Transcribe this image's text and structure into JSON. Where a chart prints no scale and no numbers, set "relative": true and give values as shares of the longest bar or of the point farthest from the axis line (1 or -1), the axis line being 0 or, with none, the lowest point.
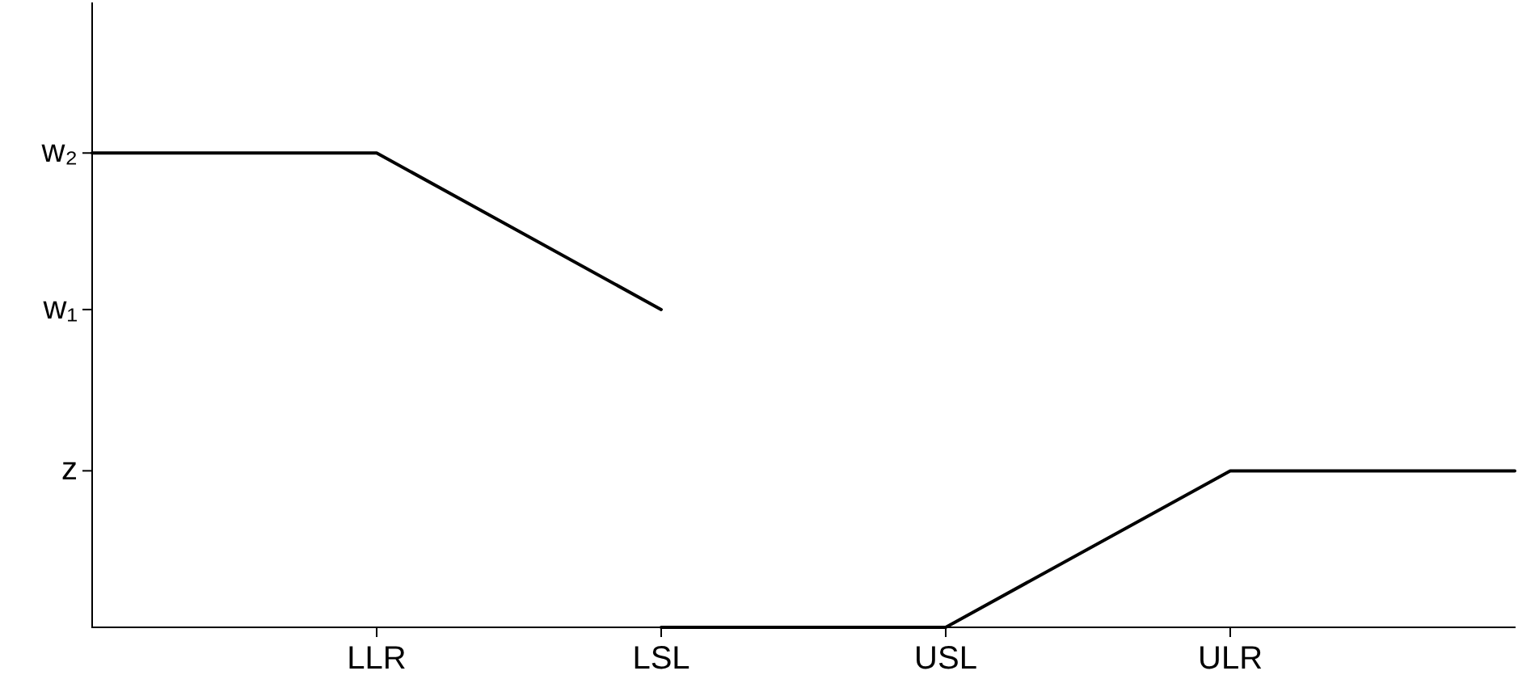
{
  "chart_data": {
    "type": "line",
    "relative": true,
    "categories": [
      null,
      "LLR",
      "LSL",
      "USL",
      "ULR",
      null
    ],
    "series": [
      {
        "color": "#000000",
        "values": [
          1,
          1,
          0.67,
          null,
          null,
          null
        ]
      },
      {
        "color": "#000000",
        "values": [
          null,
          null,
          0,
          0,
          0.33,
          0.33
        ]
      }
    ],
    "annotations": [
      "w₂",
      "w₁",
      "z"
    ],
    "grid": false,
    "legend": false,
    "marker": "none",
    "line_style": "solid"
  }
}
